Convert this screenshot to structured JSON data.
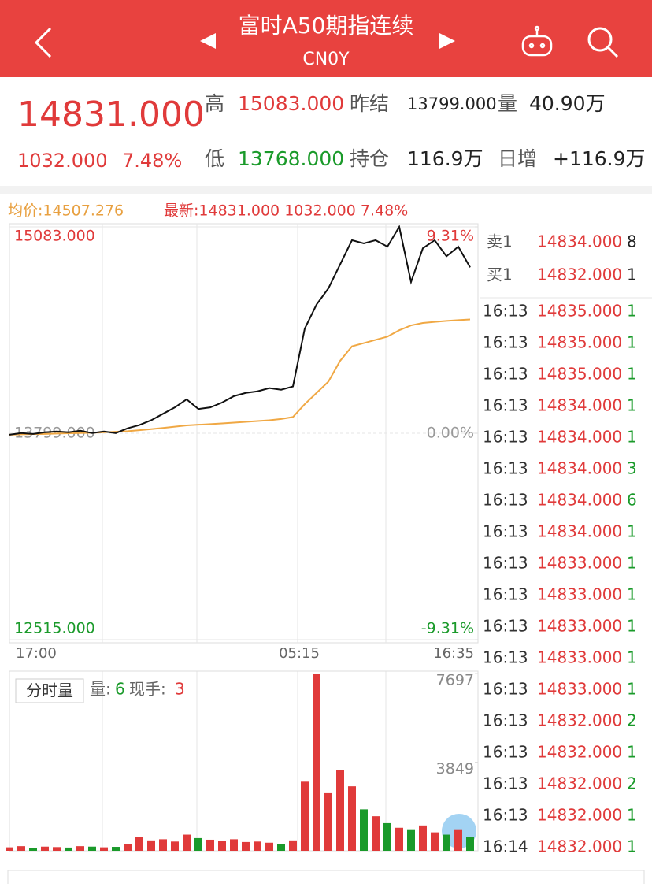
{
  "header": {
    "title": "富时A50期指连续",
    "subtitle": "CN0Y"
  },
  "quote": {
    "price": "14831.000",
    "change": "1032.000",
    "change_pct": "7.48%",
    "fields": [
      {
        "label": "高",
        "value": "15083.000"
      },
      {
        "label": "昨结",
        "value": "13799.000"
      },
      {
        "label": "量",
        "value": "40.90万"
      },
      {
        "label": "低",
        "value": "13768.000"
      },
      {
        "label": "持仓",
        "value": "116.9万"
      },
      {
        "label": "日增",
        "value": "+116.9万"
      }
    ]
  },
  "chart_data": [
    {
      "type": "line",
      "legend": [
        "均价:14507.276",
        "最新:14831.000 1032.000 7.48%"
      ],
      "x_labels": [
        "17:00",
        "05:15",
        "16:35"
      ],
      "ylim": [
        12515,
        15083
      ],
      "yticks": [
        {
          "value": 15083,
          "label": "15083.000"
        },
        {
          "value": 13799,
          "label": "13799.000"
        },
        {
          "value": 12515,
          "label": "12515.000"
        }
      ],
      "y2lim": [
        -9.31,
        9.31
      ],
      "y2ticks": [
        {
          "value": 9.31,
          "label": "9.31%"
        },
        {
          "value": 0,
          "label": "0.00%"
        },
        {
          "value": -9.31,
          "label": "-9.31%"
        }
      ],
      "series": [
        {
          "color": "#111111",
          "values": [
            13790,
            13800,
            13795,
            13805,
            13810,
            13805,
            13815,
            13800,
            13810,
            13800,
            13830,
            13850,
            13880,
            13920,
            13960,
            14010,
            13950,
            13960,
            13990,
            14030,
            14050,
            14060,
            14080,
            14070,
            14090,
            14450,
            14600,
            14700,
            14850,
            15000,
            14980,
            15000,
            14960,
            15083,
            14740,
            14950,
            15000,
            14900,
            14960,
            14831
          ]
        },
        {
          "color": "#f0a844",
          "values": [
            13790,
            13792,
            13794,
            13795,
            13797,
            13799,
            13800,
            13802,
            13805,
            13808,
            13812,
            13818,
            13825,
            13832,
            13840,
            13848,
            13852,
            13856,
            13860,
            13865,
            13870,
            13875,
            13880,
            13888,
            13900,
            13980,
            14050,
            14120,
            14250,
            14340,
            14360,
            14380,
            14400,
            14440,
            14470,
            14485,
            14492,
            14498,
            14503,
            14507
          ]
        }
      ]
    },
    {
      "type": "bar",
      "title": "分时量",
      "stats": [
        {
          "label": "量:",
          "value": "6"
        },
        {
          "label": "现手:",
          "value": "3"
        }
      ],
      "ylim": [
        0,
        7697
      ],
      "yticks": [
        3849,
        7697
      ],
      "values": [
        150,
        200,
        120,
        180,
        160,
        140,
        200,
        180,
        150,
        170,
        300,
        600,
        450,
        500,
        400,
        700,
        550,
        480,
        420,
        500,
        380,
        400,
        350,
        300,
        450,
        3000,
        7697,
        2500,
        3500,
        2800,
        1800,
        1500,
        1200,
        1000,
        900,
        1100,
        800,
        700,
        900,
        600
      ]
    }
  ],
  "orderbook": {
    "asks": [
      {
        "label": "卖1",
        "price": "14834.000",
        "qty": "8"
      }
    ],
    "bids": [
      {
        "label": "买1",
        "price": "14832.000",
        "qty": "1"
      }
    ],
    "trades": [
      {
        "time": "16:13",
        "price": "14835.000",
        "qty": "1"
      },
      {
        "time": "16:13",
        "price": "14835.000",
        "qty": "1"
      },
      {
        "time": "16:13",
        "price": "14835.000",
        "qty": "1"
      },
      {
        "time": "16:13",
        "price": "14834.000",
        "qty": "1"
      },
      {
        "time": "16:13",
        "price": "14834.000",
        "qty": "1"
      },
      {
        "time": "16:13",
        "price": "14834.000",
        "qty": "3"
      },
      {
        "time": "16:13",
        "price": "14834.000",
        "qty": "6"
      },
      {
        "time": "16:13",
        "price": "14834.000",
        "qty": "1"
      },
      {
        "time": "16:13",
        "price": "14833.000",
        "qty": "1"
      },
      {
        "time": "16:13",
        "price": "14833.000",
        "qty": "1"
      },
      {
        "time": "16:13",
        "price": "14833.000",
        "qty": "1"
      },
      {
        "time": "16:13",
        "price": "14833.000",
        "qty": "1"
      },
      {
        "time": "16:13",
        "price": "14833.000",
        "qty": "1"
      },
      {
        "time": "16:13",
        "price": "14832.000",
        "qty": "2"
      },
      {
        "time": "16:13",
        "price": "14832.000",
        "qty": "1"
      },
      {
        "time": "16:13",
        "price": "14832.000",
        "qty": "2"
      },
      {
        "time": "16:13",
        "price": "14832.000",
        "qty": "1"
      },
      {
        "time": "16:14",
        "price": "14832.000",
        "qty": "1"
      }
    ]
  }
}
